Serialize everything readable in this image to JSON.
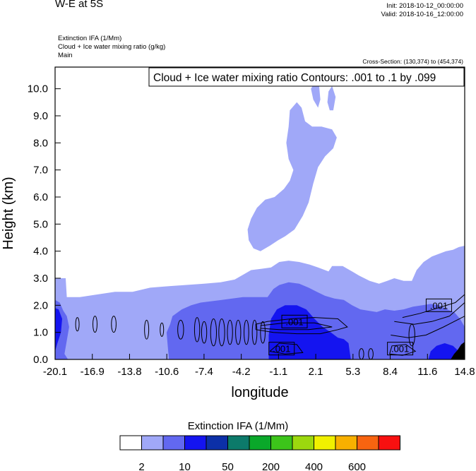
{
  "header": {
    "title": "W-E at 5S",
    "init": "Init: 2018-10-12_00:00:00",
    "valid": "Valid: 2018-10-16_12:00:00",
    "field1": "Extinction IFA   (1/Mm)",
    "field2": "Cloud + Ice water mixing ratio   (g/kg)",
    "field3": "Main",
    "cross_section": "Cross-Section: (130,374) to (454,374)"
  },
  "chart_data": {
    "type": "heatmap",
    "title": "W-E at 5S",
    "xlabel": "longitude",
    "ylabel": "Height (km)",
    "x_ticks": [
      "-20.1",
      "-16.9",
      "-13.8",
      "-10.6",
      "-7.4",
      "-4.2",
      "-1.1",
      "2.1",
      "5.3",
      "8.4",
      "11.6",
      "14.8"
    ],
    "y_ticks": [
      "0.0",
      "1.0",
      "2.0",
      "3.0",
      "4.0",
      "5.0",
      "6.0",
      "7.0",
      "8.0",
      "9.0",
      "10.0"
    ],
    "xlim": [
      -20.1,
      14.8
    ],
    "ylim": [
      0.0,
      10.8
    ],
    "contour_info": "Cloud + Ice water mixing ratio Contours: .001 to .1 by .099",
    "contour_labels": [
      {
        "text": ".001",
        "x": 0.3,
        "y": 1.4
      },
      {
        "text": ".001",
        "x": -0.8,
        "y": 0.4
      },
      {
        "text": ".001",
        "x": 9.3,
        "y": 0.4
      },
      {
        "text": ".001",
        "x": 12.6,
        "y": 2.0
      }
    ],
    "colorbar": {
      "title": "Extinction IFA  (1/Mm)",
      "colors": [
        "#ffffff",
        "#a0a8f8",
        "#6268f0",
        "#1414f0",
        "#0c30a8",
        "#0c7a6a",
        "#0aa82a",
        "#3cc41a",
        "#9cd80e",
        "#f0f000",
        "#f8b000",
        "#f86410",
        "#f81010"
      ],
      "labels": [
        "2",
        "10",
        "50",
        "200",
        "400",
        "600"
      ],
      "label_after_boxes": [
        1,
        3,
        5,
        7,
        9,
        11
      ]
    },
    "regions": [
      {
        "level": "2-10",
        "color": "#a0a8f8",
        "polygon": [
          [
            -20.1,
            0
          ],
          [
            -20.1,
            3.0
          ],
          [
            -19.2,
            3.0
          ],
          [
            -19.1,
            2.3
          ],
          [
            -18.0,
            2.3
          ],
          [
            -16.5,
            2.4
          ],
          [
            -15.0,
            2.5
          ],
          [
            -13.5,
            2.5
          ],
          [
            -12.0,
            2.65
          ],
          [
            -10.6,
            2.7
          ],
          [
            -9.0,
            2.75
          ],
          [
            -7.4,
            2.8
          ],
          [
            -6.0,
            2.85
          ],
          [
            -4.8,
            2.95
          ],
          [
            -4.0,
            3.15
          ],
          [
            -3.4,
            3.3
          ],
          [
            -2.5,
            3.35
          ],
          [
            -1.7,
            3.4
          ],
          [
            -1.0,
            3.6
          ],
          [
            -0.2,
            3.65
          ],
          [
            0.7,
            3.6
          ],
          [
            1.6,
            3.5
          ],
          [
            2.3,
            3.4
          ],
          [
            3.2,
            3.25
          ],
          [
            3.5,
            3.45
          ],
          [
            4.4,
            3.45
          ],
          [
            5.2,
            3.25
          ],
          [
            5.8,
            3.1
          ],
          [
            6.7,
            2.9
          ],
          [
            7.5,
            2.8
          ],
          [
            8.2,
            2.9
          ],
          [
            8.8,
            3.0
          ],
          [
            9.6,
            2.9
          ],
          [
            10.3,
            2.9
          ],
          [
            10.7,
            3.3
          ],
          [
            11.3,
            3.6
          ],
          [
            12.0,
            3.8
          ],
          [
            12.6,
            3.9
          ],
          [
            13.2,
            4.0
          ],
          [
            13.8,
            4.05
          ],
          [
            14.3,
            4.15
          ],
          [
            14.8,
            4.2
          ],
          [
            14.8,
            0
          ]
        ]
      },
      {
        "level": "2-10",
        "color": "#a0a8f8",
        "polygon": [
          [
            -3.7,
            4.8
          ],
          [
            -3.6,
            4.4
          ],
          [
            -3.2,
            4.1
          ],
          [
            -2.6,
            4.0
          ],
          [
            -1.8,
            4.2
          ],
          [
            -1.1,
            4.4
          ],
          [
            -0.5,
            4.55
          ],
          [
            0.3,
            4.8
          ],
          [
            1.0,
            5.3
          ],
          [
            1.5,
            5.8
          ],
          [
            1.9,
            6.5
          ],
          [
            2.3,
            7.1
          ],
          [
            2.9,
            7.5
          ],
          [
            3.6,
            7.8
          ],
          [
            3.9,
            8.2
          ],
          [
            3.5,
            8.5
          ],
          [
            2.6,
            8.6
          ],
          [
            1.8,
            8.6
          ],
          [
            1.2,
            8.8
          ],
          [
            0.9,
            9.3
          ],
          [
            0.5,
            9.5
          ],
          [
            -0.1,
            9.2
          ],
          [
            -0.2,
            8.6
          ],
          [
            -0.4,
            8.0
          ],
          [
            -0.2,
            7.4
          ],
          [
            0.2,
            7.0
          ],
          [
            -0.1,
            6.6
          ],
          [
            -0.6,
            6.3
          ],
          [
            -1.4,
            6.0
          ],
          [
            -2.2,
            5.9
          ],
          [
            -2.9,
            5.6
          ],
          [
            -3.4,
            5.2
          ]
        ]
      },
      {
        "level": "2-10",
        "color": "#a0a8f8",
        "polygon": [
          [
            1.7,
            10.0
          ],
          [
            1.9,
            9.6
          ],
          [
            2.3,
            9.3
          ],
          [
            2.5,
            9.6
          ],
          [
            2.4,
            10.1
          ],
          [
            2.1,
            10.3
          ]
        ]
      },
      {
        "level": "2-10",
        "color": "#a0a8f8",
        "polygon": [
          [
            3.1,
            9.5
          ],
          [
            3.3,
            9.2
          ],
          [
            3.6,
            9.2
          ],
          [
            3.8,
            9.7
          ],
          [
            3.5,
            10.1
          ],
          [
            3.2,
            9.9
          ]
        ]
      },
      {
        "level": "10-50",
        "color": "#6268f0",
        "polygon": [
          [
            -20.1,
            0
          ],
          [
            -20.1,
            2.2
          ],
          [
            -19.7,
            2.1
          ],
          [
            -19.4,
            1.8
          ],
          [
            -19.1,
            1.6
          ],
          [
            -18.9,
            1.2
          ],
          [
            -19.1,
            0.7
          ],
          [
            -19.3,
            0.2
          ],
          [
            -19.0,
            0
          ],
          [
            -10.4,
            0
          ],
          [
            -10.5,
            0.5
          ],
          [
            -10.6,
            1.0
          ],
          [
            -10.3,
            1.3
          ],
          [
            -10.1,
            1.6
          ],
          [
            -9.3,
            1.85
          ],
          [
            -8.5,
            2.0
          ],
          [
            -7.7,
            2.1
          ],
          [
            -6.8,
            2.15
          ],
          [
            -5.9,
            2.2
          ],
          [
            -5.0,
            2.25
          ],
          [
            -4.1,
            2.3
          ],
          [
            -3.0,
            2.3
          ],
          [
            -2.0,
            2.3
          ],
          [
            -1.5,
            2.6
          ],
          [
            -1.0,
            2.75
          ],
          [
            -0.2,
            2.85
          ],
          [
            0.7,
            2.8
          ],
          [
            1.5,
            2.65
          ],
          [
            2.2,
            2.5
          ],
          [
            2.9,
            2.35
          ],
          [
            3.7,
            2.25
          ],
          [
            4.5,
            2.2
          ],
          [
            5.2,
            2.0
          ],
          [
            5.9,
            1.85
          ],
          [
            6.6,
            1.8
          ],
          [
            7.3,
            1.75
          ],
          [
            8.0,
            1.85
          ],
          [
            8.8,
            1.8
          ],
          [
            9.6,
            1.85
          ],
          [
            10.4,
            1.95
          ],
          [
            11.2,
            2.0
          ],
          [
            11.9,
            2.05
          ],
          [
            12.6,
            2.0
          ],
          [
            13.3,
            1.85
          ],
          [
            13.9,
            1.75
          ],
          [
            14.4,
            1.5
          ],
          [
            14.8,
            1.2
          ],
          [
            14.8,
            0
          ]
        ]
      },
      {
        "level": "50-200",
        "color": "#1414f0",
        "polygon": [
          [
            -20.1,
            0
          ],
          [
            -20.1,
            1.9
          ],
          [
            -19.8,
            1.85
          ],
          [
            -19.5,
            1.5
          ],
          [
            -19.6,
            1.0
          ],
          [
            -19.9,
            0.6
          ],
          [
            -20.1,
            0.3
          ],
          [
            -20.1,
            0
          ]
        ]
      },
      {
        "level": "50-200",
        "color": "#1414f0",
        "polygon": [
          [
            -1.9,
            0
          ],
          [
            -1.9,
            0.9
          ],
          [
            -1.7,
            1.5
          ],
          [
            -1.2,
            1.85
          ],
          [
            -0.5,
            2.0
          ],
          [
            0.5,
            2.0
          ],
          [
            1.3,
            1.85
          ],
          [
            2.0,
            1.5
          ],
          [
            2.7,
            1.2
          ],
          [
            3.4,
            1.0
          ],
          [
            4.0,
            0.8
          ],
          [
            4.5,
            0.75
          ],
          [
            4.9,
            0.6
          ],
          [
            5.0,
            0.3
          ],
          [
            5.1,
            0
          ]
        ]
      },
      {
        "level": "50-200",
        "color": "#1414f0",
        "polygon": [
          [
            11.7,
            0
          ],
          [
            11.9,
            0.3
          ],
          [
            12.4,
            0.5
          ],
          [
            13.1,
            0.6
          ],
          [
            13.8,
            0.5
          ],
          [
            14.3,
            0.3
          ],
          [
            14.8,
            0.25
          ],
          [
            14.8,
            0
          ]
        ]
      },
      {
        "level": "600+",
        "color": "#000000",
        "polygon": [
          [
            13.6,
            0
          ],
          [
            13.9,
            0.2
          ],
          [
            14.2,
            0.35
          ],
          [
            14.5,
            0.55
          ],
          [
            14.8,
            0.65
          ],
          [
            14.8,
            0
          ]
        ]
      }
    ]
  }
}
